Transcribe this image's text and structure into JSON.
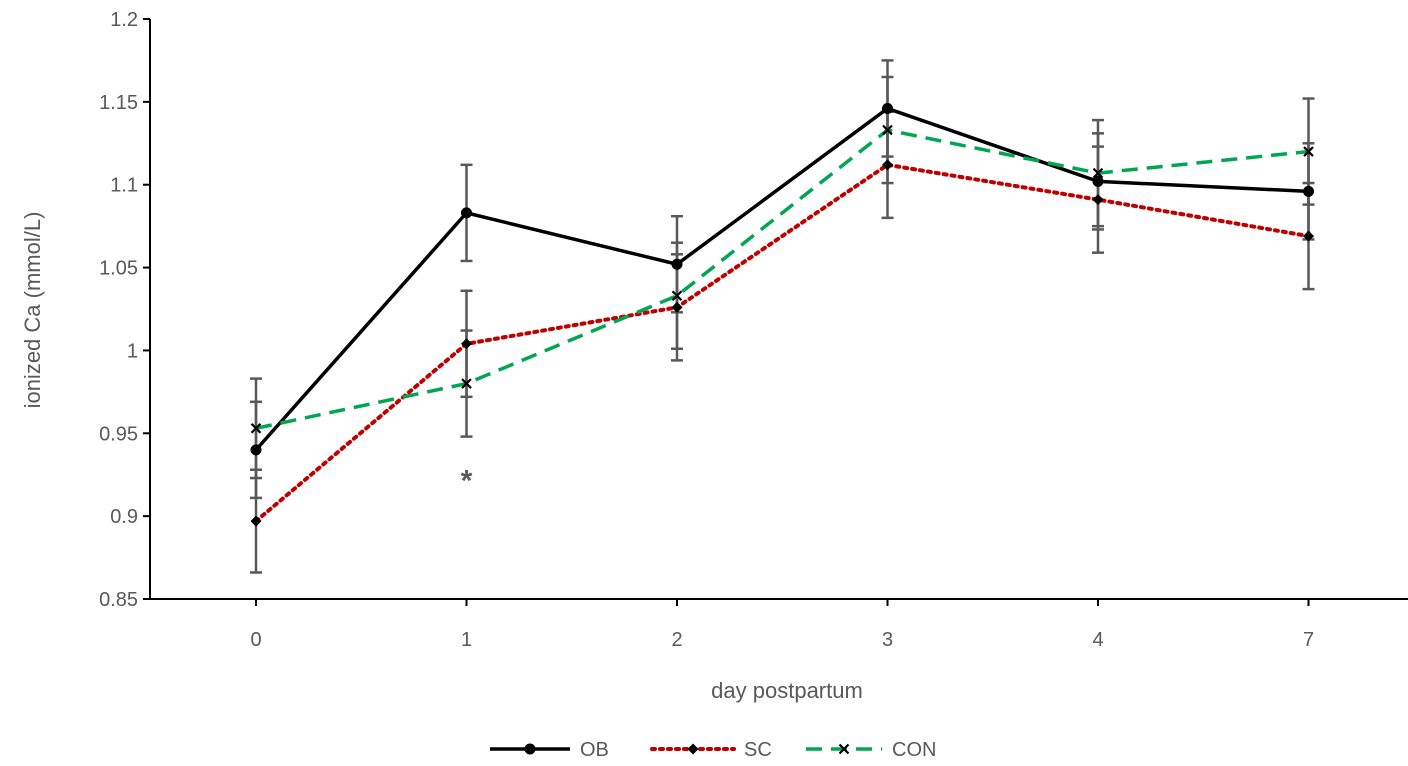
{
  "chart_data": {
    "type": "line",
    "title": "",
    "xlabel": "day postpartum",
    "ylabel": "ionized Ca (mmol/L)",
    "categories": [
      "0",
      "1",
      "2",
      "3",
      "4",
      "7"
    ],
    "ylim": [
      0.85,
      1.2
    ],
    "yticks": [
      0.85,
      0.9,
      0.95,
      1,
      1.05,
      1.1,
      1.15,
      1.2
    ],
    "ytick_labels": [
      "0.85",
      "0.9",
      "0.95",
      "1",
      "1.05",
      "1.1",
      "1.15",
      "1.2"
    ],
    "grid": false,
    "legend_position": "bottom",
    "series": [
      {
        "name": "OB",
        "values": [
          0.94,
          1.083,
          1.052,
          1.146,
          1.102,
          1.096
        ],
        "error": [
          0.029,
          0.029,
          0.029,
          0.029,
          0.029,
          0.029
        ],
        "color": "#000000",
        "line_style": "solid",
        "marker": "circle"
      },
      {
        "name": "SC",
        "values": [
          0.897,
          1.004,
          1.026,
          1.112,
          1.091,
          1.069
        ],
        "error": [
          0.031,
          0.032,
          0.032,
          0.032,
          0.032,
          0.032
        ],
        "color": "#c00000",
        "line_style": "dotted",
        "marker": "diamond"
      },
      {
        "name": "CON",
        "values": [
          0.953,
          0.98,
          1.033,
          1.133,
          1.107,
          1.12
        ],
        "error": [
          0.03,
          0.032,
          0.032,
          0.032,
          0.032,
          0.032
        ],
        "color": "#00a651",
        "line_style": "dashed",
        "marker": "x"
      }
    ],
    "annotations": [
      {
        "text": "*",
        "category": "1",
        "y": 0.924
      }
    ]
  }
}
